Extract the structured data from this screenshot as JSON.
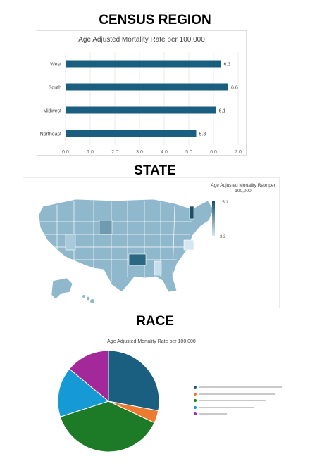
{
  "sections": {
    "census_region": "CENSUS REGION",
    "state": "STATE",
    "race": "RACE"
  },
  "chart_data": [
    {
      "type": "bar",
      "orientation": "horizontal",
      "title": "Age Adjusted Mortality Rate per 100,000",
      "categories": [
        "West",
        "South",
        "Midwest",
        "Northeast"
      ],
      "values": [
        6.3,
        6.6,
        6.1,
        5.3
      ],
      "value_labels": [
        "6.3",
        "6.6",
        "6.1",
        "5.3"
      ],
      "xticks": [
        "0.0",
        "1.0",
        "2.0",
        "3.0",
        "4.0",
        "5.0",
        "6.0",
        "7.0"
      ],
      "xlim": [
        0,
        7
      ],
      "grid": true,
      "color": "#1a5e80"
    },
    {
      "type": "map",
      "title": "Age Adjusted Mortality Rate per 100,000",
      "colorbar": {
        "max_label": "15.1",
        "min_label": "3.2",
        "min": 3.2,
        "max": 15.1,
        "color_low": "#dbeaf2",
        "color_high": "#1b4f66"
      }
    },
    {
      "type": "pie",
      "title": "Age Adjusted Mortality Rate per 100,000",
      "slices": [
        {
          "value": 28,
          "color": "#1a5e80"
        },
        {
          "value": 4,
          "color": "#ec7a2f"
        },
        {
          "value": 38,
          "color": "#1d7a26"
        },
        {
          "value": 16,
          "color": "#159ad6"
        },
        {
          "value": 14,
          "color": "#a3299a"
        }
      ]
    }
  ]
}
